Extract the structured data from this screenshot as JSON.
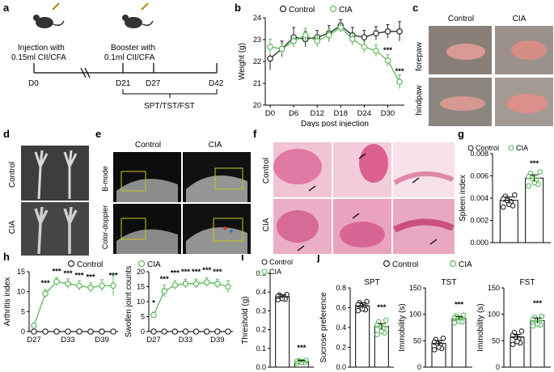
{
  "panels": {
    "a": "a",
    "b": "b",
    "c": "c",
    "d": "d",
    "e": "e",
    "f": "f",
    "g": "g",
    "h": "h",
    "i": "i",
    "j": "j"
  },
  "legend": {
    "control": "Control",
    "cia": "CIA"
  },
  "colors": {
    "cia": "#5cb85c",
    "control": "#222222"
  },
  "timeline": {
    "injection": [
      "Injection with",
      "0.15ml CII/CFA"
    ],
    "booster": [
      "Booster with",
      "0.1ml CII/CFA"
    ],
    "days": [
      "D0",
      "D21",
      "D27",
      "D42"
    ],
    "tests": "SPT/TST/FST"
  },
  "photo_labels": {
    "c_cols": [
      "Control",
      "CIA"
    ],
    "c_rows": [
      "forepaw",
      "hindpaw"
    ],
    "d_rows": [
      "Control",
      "CIA"
    ],
    "e_cols": [
      "Control",
      "CIA"
    ],
    "e_rows": [
      "B-mode",
      "Color-doppler"
    ],
    "f_rows": [
      "Control",
      "CIA"
    ]
  },
  "chart_data": [
    {
      "id": "b",
      "type": "line",
      "xlabel": "Days post injection",
      "ylabel": "Weight (g)",
      "ylim": [
        20,
        24.5
      ],
      "y_ticks": [
        "20",
        "21",
        "22",
        "23",
        "24"
      ],
      "x_ticks": [
        "D0",
        "D6",
        "D12",
        "D18",
        "D24",
        "D30"
      ],
      "x": [
        0,
        3,
        6,
        9,
        12,
        15,
        18,
        21,
        24,
        27,
        30,
        33
      ],
      "series": [
        {
          "name": "Control",
          "values": [
            22.4,
            22.9,
            23.5,
            23.4,
            23.5,
            23.7,
            24.1,
            23.6,
            23.5,
            23.7,
            23.8,
            23.8
          ]
        },
        {
          "name": "CIA",
          "values": [
            23.0,
            22.9,
            23.3,
            23.6,
            23.3,
            23.6,
            24.0,
            23.4,
            23.0,
            22.8,
            22.3,
            21.2
          ]
        }
      ],
      "annotations": [
        "***",
        "***"
      ]
    },
    {
      "id": "g",
      "type": "bar",
      "ylabel": "Spleen index",
      "ylim": [
        0,
        0.008
      ],
      "y_ticks": [
        "0.000",
        "0.002",
        "0.004",
        "0.006",
        "0.008"
      ],
      "categories": [
        "Control",
        "CIA"
      ],
      "values": [
        0.0038,
        0.0058
      ],
      "annotations": [
        "***"
      ]
    },
    {
      "id": "h1",
      "type": "line",
      "ylabel": "Arthritis index",
      "ylim": [
        0,
        15
      ],
      "y_ticks": [
        "0",
        "5",
        "10",
        "15"
      ],
      "x_ticks": [
        "D27",
        "D33",
        "D39"
      ],
      "x": [
        27,
        29,
        31,
        33,
        35,
        37,
        39,
        41
      ],
      "series": [
        {
          "name": "Control",
          "values": [
            0,
            0,
            0,
            0,
            0,
            0,
            0,
            0
          ]
        },
        {
          "name": "CIA",
          "values": [
            1.5,
            9.5,
            12.5,
            12.0,
            11.5,
            11.0,
            11.5,
            11.5
          ]
        }
      ],
      "annotations": [
        "***",
        "***",
        "***",
        "***",
        "***",
        "***"
      ]
    },
    {
      "id": "h2",
      "type": "line",
      "ylabel": "Swollen joint counts",
      "ylim": [
        0,
        20
      ],
      "y_ticks": [
        "0",
        "5",
        "10",
        "15",
        "20"
      ],
      "x_ticks": [
        "D27",
        "D33",
        "D39"
      ],
      "x": [
        27,
        29,
        31,
        33,
        35,
        37,
        39,
        41
      ],
      "series": [
        {
          "name": "Control",
          "values": [
            0,
            0,
            0,
            0,
            0,
            0,
            0,
            0
          ]
        },
        {
          "name": "CIA",
          "values": [
            5.5,
            13.5,
            15.5,
            16.0,
            16.0,
            16.5,
            16.0,
            15.0
          ]
        }
      ],
      "annotations": [
        "*",
        "***",
        "***",
        "***",
        "***",
        "***",
        "***"
      ]
    },
    {
      "id": "i",
      "type": "bar",
      "ylabel": "Threshold (g)",
      "ylim": [
        0,
        0.5
      ],
      "y_ticks": [
        "0.0",
        "0.1",
        "0.2",
        "0.3",
        "0.4",
        "0.5"
      ],
      "categories": [
        "Control",
        "CIA"
      ],
      "values": [
        0.375,
        0.03
      ],
      "annotations": [
        "***"
      ]
    },
    {
      "id": "j1",
      "type": "bar",
      "title": "SPT",
      "ylabel": "Sucrose preference",
      "ylim": [
        0,
        0.8
      ],
      "y_ticks": [
        "0.0",
        "0.2",
        "0.4",
        "0.6",
        "0.8"
      ],
      "categories": [
        "Control",
        "CIA"
      ],
      "values": [
        0.62,
        0.41
      ],
      "annotations": [
        "***"
      ]
    },
    {
      "id": "j2",
      "type": "bar",
      "title": "TST",
      "ylabel": "Immobility (s)",
      "ylim": [
        0,
        150
      ],
      "y_ticks": [
        "0",
        "50",
        "100",
        "150"
      ],
      "categories": [
        "Control",
        "CIA"
      ],
      "values": [
        45,
        92
      ],
      "annotations": [
        "***"
      ]
    },
    {
      "id": "j3",
      "type": "bar",
      "title": "FST",
      "ylabel": "Immobility (s)",
      "ylim": [
        0,
        150
      ],
      "y_ticks": [
        "0",
        "50",
        "100",
        "150"
      ],
      "categories": [
        "Control",
        "CIA"
      ],
      "values": [
        57,
        88
      ],
      "annotations": [
        "***"
      ]
    }
  ]
}
